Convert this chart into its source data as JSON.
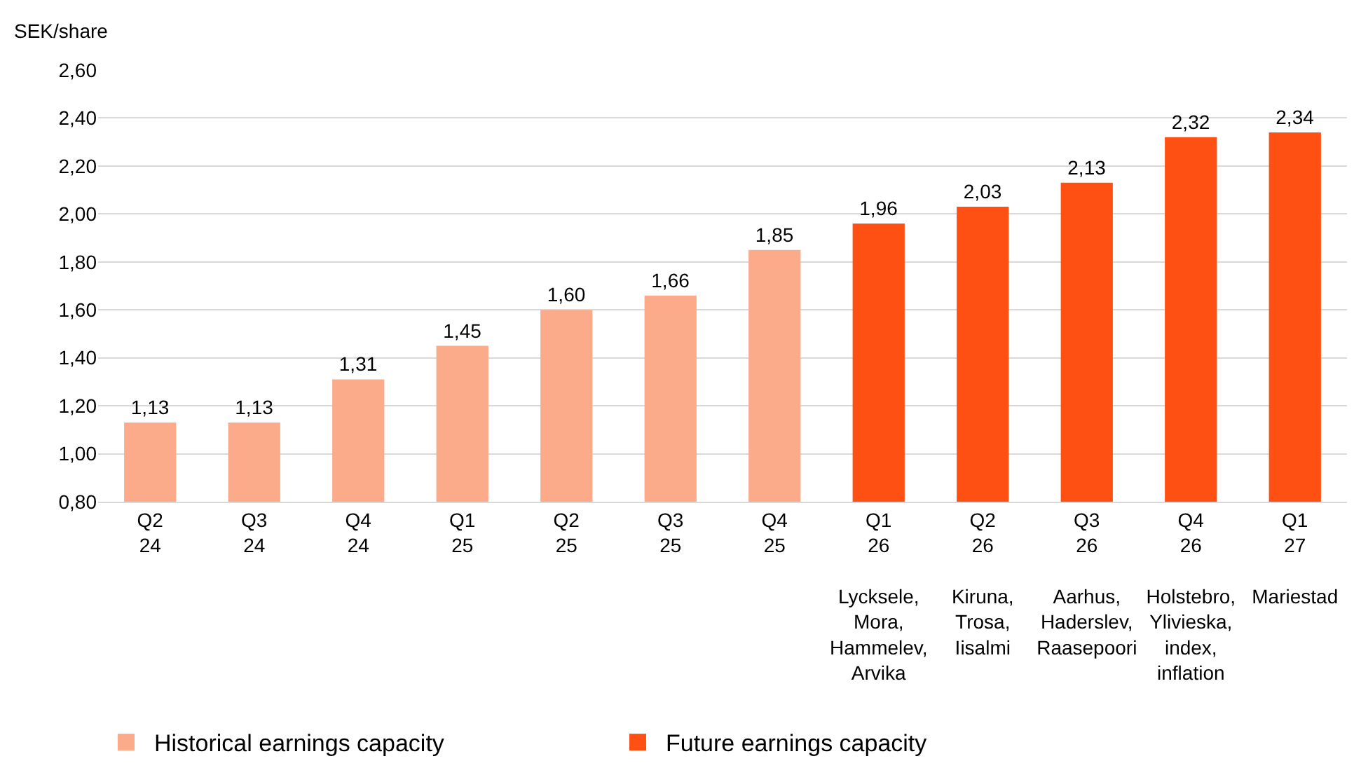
{
  "chart_data": {
    "type": "bar",
    "ylabel": "SEK/share",
    "categories": [
      "Q2\n24",
      "Q3\n24",
      "Q4\n24",
      "Q1\n25",
      "Q2\n25",
      "Q3\n25",
      "Q4\n25",
      "Q1\n26\n\nLycksele,\nMora,\nHammelev,\nArvika",
      "Q2\n26\n\nKiruna,\nTrosa,\nIisalmi",
      "Q3\n26\n\nAarhus,\nHaderslev,\nRaasepoori",
      "Q4\n26\n\nHolstebro,\nYlivieska,\nindex,\ninflation",
      "Q1\n27\n\nMariestad"
    ],
    "series": [
      {
        "name": "Historical earnings capacity",
        "color": "#fbaa8a",
        "values": [
          1.13,
          1.13,
          1.31,
          1.45,
          1.6,
          1.66,
          1.85,
          null,
          null,
          null,
          null,
          null
        ],
        "value_labels": [
          "1,13",
          "1,13",
          "1,31",
          "1,45",
          "1,60",
          "1,66",
          "1,85",
          null,
          null,
          null,
          null,
          null
        ]
      },
      {
        "name": "Future earnings capacity",
        "color": "#ff5014",
        "values": [
          null,
          null,
          null,
          null,
          null,
          null,
          null,
          1.96,
          2.03,
          2.13,
          2.32,
          2.34
        ],
        "value_labels": [
          null,
          null,
          null,
          null,
          null,
          null,
          null,
          "1,96",
          "2,03",
          "2,13",
          "2,32",
          "2,34"
        ]
      }
    ],
    "ylim": [
      0.8,
      2.6
    ],
    "yticks": [
      {
        "value": 0.8,
        "label": "0,80"
      },
      {
        "value": 1.0,
        "label": "1,00"
      },
      {
        "value": 1.2,
        "label": "1,20"
      },
      {
        "value": 1.4,
        "label": "1,40"
      },
      {
        "value": 1.6,
        "label": "1,60"
      },
      {
        "value": 1.8,
        "label": "1,80"
      },
      {
        "value": 2.0,
        "label": "2,00"
      },
      {
        "value": 2.2,
        "label": "2,20"
      },
      {
        "value": 2.4,
        "label": "2,40"
      },
      {
        "value": 2.6,
        "label": "2,60"
      }
    ],
    "grid": "y",
    "legend": "bottom left"
  }
}
